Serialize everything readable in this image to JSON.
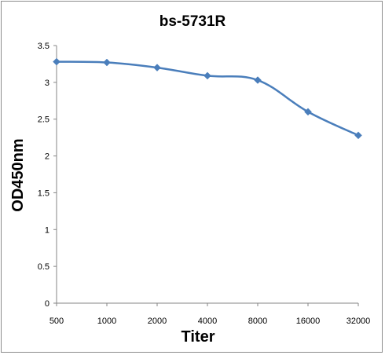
{
  "chart_data": {
    "type": "line",
    "title": "bs-5731R",
    "xlabel": "Titer",
    "ylabel": "OD450nm",
    "categories": [
      "500",
      "1000",
      "2000",
      "4000",
      "8000",
      "16000",
      "32000"
    ],
    "series": [
      {
        "values": [
          3.28,
          3.27,
          3.2,
          3.09,
          3.03,
          2.6,
          2.28
        ]
      }
    ],
    "ylim": [
      0,
      3.5
    ],
    "yticks": [
      "0",
      "0.5",
      "1",
      "1.5",
      "2",
      "2.5",
      "3",
      "3.5"
    ],
    "grid": false,
    "legend": "none",
    "line_color": "#4a7ebb",
    "marker": "diamond"
  }
}
